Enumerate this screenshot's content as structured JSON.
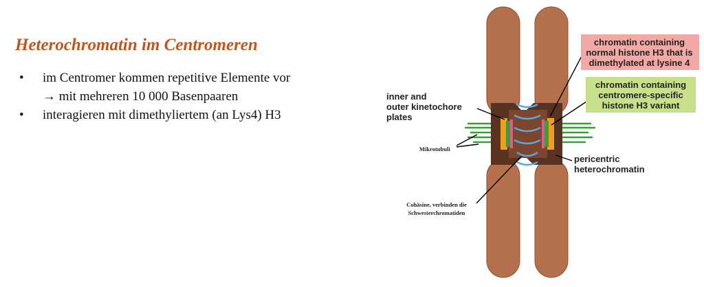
{
  "slide": {
    "heading": "Heterochromatin im Centromeren",
    "bullets": [
      {
        "line1": "im Centromer kommen repetitive Elemente vor",
        "line2": "→ mit mehreren 10 000 Basenpaaren"
      },
      {
        "line1": "interagieren mit dimethyliertem (an Lys4) H3",
        "line2": ""
      }
    ]
  },
  "diagram": {
    "inner_outer": [
      "inner and",
      "outer kinetochore",
      "plates"
    ],
    "mikrotubuli": "Mikrotubuli",
    "cohesine": [
      "Cohäsine, verbinden die",
      "Schwesterchromatiden"
    ],
    "normal_h3": [
      "chromatin containing",
      "normal histone H3 that is",
      "dimethylated at lysine 4"
    ],
    "cenp_a": [
      "chromatin containing",
      "centromere-specific",
      "histone H3 variant"
    ],
    "pericentric": [
      "pericentric",
      "heterochromatin"
    ]
  },
  "colors": {
    "heading": "#c0561d",
    "chromatid": "#b5704e",
    "centromere": "#5a3222",
    "microtubule": "#3d9b3d",
    "kinetochore": "#f0a01c",
    "cohesin": "#55a8e0",
    "label_pink": "#f2a8a4",
    "label_green": "#c8e08a"
  }
}
